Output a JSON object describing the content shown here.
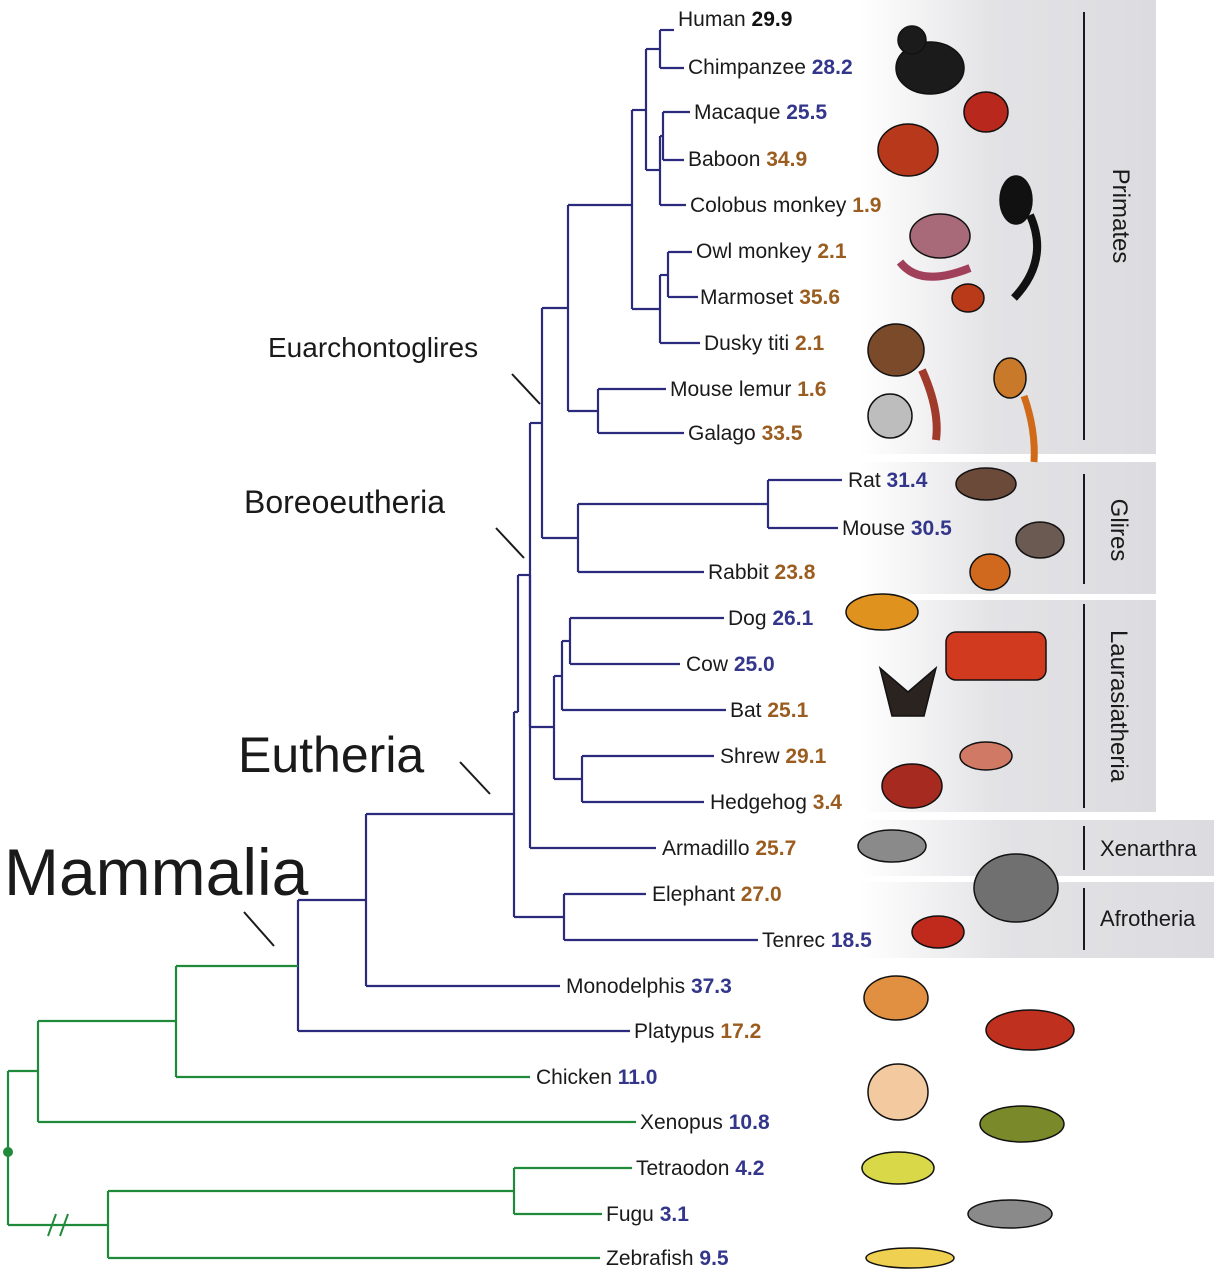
{
  "colors": {
    "eutherian_branch": "#2b2a7c",
    "outgroup_branch": "#1f8a3a",
    "value_blue": "#33368a",
    "value_orange": "#9a5d1f",
    "value_black": "#111111",
    "group_band": "#e3e3e6"
  },
  "clades": {
    "mammalia": "Mammalia",
    "eutheria": "Eutheria",
    "boreoeutheria": "Boreoeutheria",
    "euarchontoglires": "Euarchontoglires"
  },
  "groups": {
    "primates": "Primates",
    "glires": "Glires",
    "laurasiatheria": "Laurasiatheria",
    "xenarthra": "Xenarthra",
    "afrotheria": "Afrotheria"
  },
  "leaves": [
    {
      "name": "Human",
      "value": "29.9",
      "color": "black"
    },
    {
      "name": "Chimpanzee",
      "value": "28.2",
      "color": "blue"
    },
    {
      "name": "Macaque",
      "value": "25.5",
      "color": "blue"
    },
    {
      "name": "Baboon",
      "value": "34.9",
      "color": "orange"
    },
    {
      "name": "Colobus monkey",
      "value": "1.9",
      "color": "orange"
    },
    {
      "name": "Owl monkey",
      "value": "2.1",
      "color": "orange"
    },
    {
      "name": "Marmoset",
      "value": "35.6",
      "color": "orange"
    },
    {
      "name": "Dusky titi",
      "value": "2.1",
      "color": "orange"
    },
    {
      "name": "Mouse lemur",
      "value": "1.6",
      "color": "orange"
    },
    {
      "name": "Galago",
      "value": "33.5",
      "color": "orange"
    },
    {
      "name": "Rat",
      "value": "31.4",
      "color": "blue"
    },
    {
      "name": "Mouse",
      "value": "30.5",
      "color": "blue"
    },
    {
      "name": "Rabbit",
      "value": "23.8",
      "color": "orange"
    },
    {
      "name": "Dog",
      "value": "26.1",
      "color": "blue"
    },
    {
      "name": "Cow",
      "value": "25.0",
      "color": "blue"
    },
    {
      "name": "Bat",
      "value": "25.1",
      "color": "orange"
    },
    {
      "name": "Shrew",
      "value": "29.1",
      "color": "orange"
    },
    {
      "name": "Hedgehog",
      "value": "3.4",
      "color": "orange"
    },
    {
      "name": "Armadillo",
      "value": "25.7",
      "color": "orange"
    },
    {
      "name": "Elephant",
      "value": "27.0",
      "color": "orange"
    },
    {
      "name": "Tenrec",
      "value": "18.5",
      "color": "blue"
    },
    {
      "name": "Monodelphis",
      "value": "37.3",
      "color": "blue"
    },
    {
      "name": "Platypus",
      "value": "17.2",
      "color": "orange"
    },
    {
      "name": "Chicken",
      "value": "11.0",
      "color": "blue"
    },
    {
      "name": "Xenopus",
      "value": "10.8",
      "color": "blue"
    },
    {
      "name": "Tetraodon",
      "value": "4.2",
      "color": "blue"
    },
    {
      "name": "Fugu",
      "value": "3.1",
      "color": "blue"
    },
    {
      "name": "Zebrafish",
      "value": "9.5",
      "color": "blue"
    }
  ]
}
